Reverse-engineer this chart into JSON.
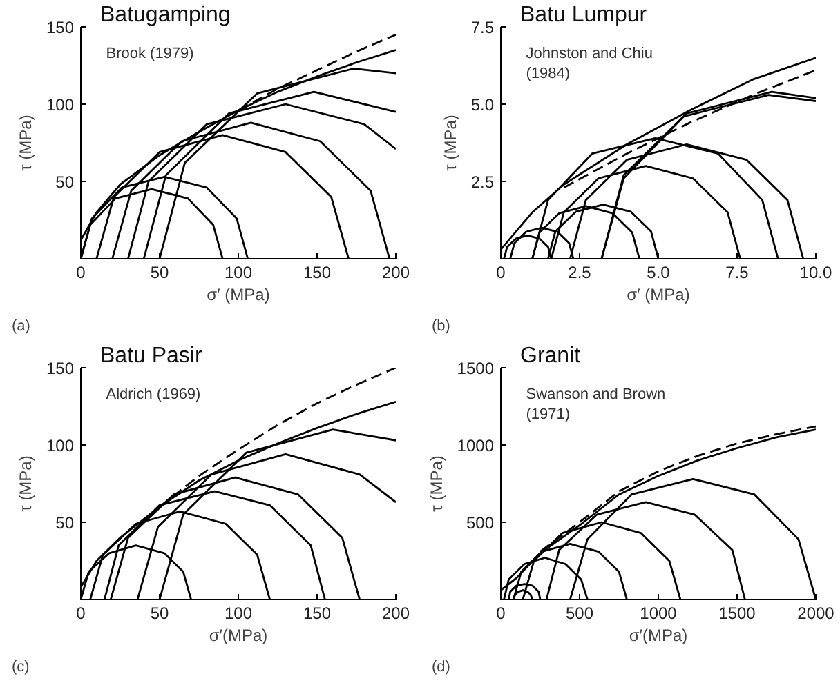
{
  "chart_data": [
    {
      "type": "line",
      "title": "Batugamping",
      "subtitle": "Brook (1979)",
      "xlabel": "σ′ (MPa)",
      "ylabel": "τ (MPa)",
      "annotations": [
        "(a)"
      ],
      "xlim": [
        0,
        200
      ],
      "ylim": [
        0,
        150
      ],
      "xticks": [
        0,
        50,
        100,
        150,
        200
      ],
      "yticks": [
        50,
        100,
        150
      ],
      "series": [
        {
          "color": "#000000",
          "line_style": "solid",
          "x": [
            0,
            10,
            25,
            50,
            75,
            100,
            125,
            150,
            175,
            200
          ],
          "values": [
            12,
            30,
            48,
            67,
            82,
            96,
            108,
            118,
            127,
            135
          ]
        },
        {
          "color": "#000000",
          "line_style": "dashed",
          "x": [
            100,
            125,
            150,
            175,
            200
          ],
          "values": [
            96,
            110,
            122,
            134,
            145
          ]
        },
        {
          "color": "#000000",
          "line_style": "solid",
          "x": [
            0,
            6,
            22,
            45,
            68,
            84,
            90
          ],
          "values": [
            0,
            22,
            39,
            45,
            39,
            22,
            0
          ]
        },
        {
          "color": "#000000",
          "line_style": "solid",
          "x": [
            0,
            7,
            26,
            53,
            80,
            99,
            106
          ],
          "values": [
            0,
            26,
            46,
            53,
            46,
            26,
            0
          ]
        },
        {
          "color": "#000000",
          "line_style": "solid",
          "x": [
            10,
            21,
            50,
            90,
            130,
            159,
            170
          ],
          "values": [
            0,
            40,
            69,
            80,
            69,
            40,
            0
          ]
        },
        {
          "color": "#000000",
          "line_style": "solid",
          "x": [
            20,
            32,
            64,
            108,
            152,
            184,
            196
          ],
          "values": [
            0,
            44,
            76,
            88,
            76,
            44,
            0
          ]
        },
        {
          "color": "#000000",
          "line_style": "solid",
          "x": [
            30,
            43,
            80,
            130,
            180,
            200
          ],
          "values": [
            0,
            50,
            87,
            100,
            87,
            71
          ]
        },
        {
          "color": "#000000",
          "line_style": "solid",
          "x": [
            40,
            54,
            94,
            148,
            200
          ],
          "values": [
            0,
            54,
            94,
            108,
            95
          ]
        },
        {
          "color": "#000000",
          "line_style": "solid",
          "x": [
            50,
            66,
            112,
            173,
            200
          ],
          "values": [
            0,
            62,
            107,
            123,
            120
          ]
        }
      ]
    },
    {
      "type": "line",
      "title": "Batu Lumpur",
      "subtitle": "Johnston and Chiu\n(1984)",
      "xlabel": "σ′ (MPa)",
      "ylabel": "τ (MPa)",
      "annotations": [
        "(b)"
      ],
      "xlim": [
        0,
        10
      ],
      "ylim": [
        0,
        7.5
      ],
      "xticks": [
        0,
        2.5,
        {
          "value": 5,
          "label": "5.0"
        },
        7.5,
        {
          "value": 10,
          "label": "10.0"
        }
      ],
      "yticks": [
        2.5,
        {
          "value": 5,
          "label": "5.0"
        },
        7.5
      ],
      "series": [
        {
          "color": "#000000",
          "line_style": "solid",
          "x": [
            0,
            1,
            2,
            4,
            6,
            8,
            10
          ],
          "values": [
            0.3,
            1.5,
            2.4,
            3.7,
            4.8,
            5.8,
            6.5
          ]
        },
        {
          "color": "#000000",
          "line_style": "dashed",
          "x": [
            2,
            4,
            6,
            8,
            10
          ],
          "values": [
            2.3,
            3.4,
            4.4,
            5.3,
            6.1
          ]
        },
        {
          "color": "#000000",
          "line_style": "solid",
          "x": [
            0.1,
            0.2,
            0.48,
            0.85,
            1.23,
            1.5,
            1.6
          ],
          "values": [
            0,
            0.38,
            0.65,
            0.75,
            0.65,
            0.38,
            0
          ]
        },
        {
          "color": "#000000",
          "line_style": "solid",
          "x": [
            0.3,
            0.43,
            0.8,
            1.3,
            1.8,
            2.17,
            2.3
          ],
          "values": [
            0,
            0.5,
            0.87,
            1,
            0.87,
            0.5,
            0
          ]
        },
        {
          "color": "#000000",
          "line_style": "solid",
          "x": [
            1,
            1.23,
            1.85,
            2.7,
            3.55,
            4.17,
            4.4
          ],
          "values": [
            0,
            0.85,
            1.47,
            1.7,
            1.47,
            0.85,
            0
          ]
        },
        {
          "color": "#000000",
          "line_style": "solid",
          "x": [
            1.5,
            1.73,
            2.38,
            3.25,
            4.13,
            4.77,
            5
          ],
          "values": [
            0,
            0.88,
            1.52,
            1.75,
            1.52,
            0.88,
            0
          ]
        },
        {
          "color": "#000000",
          "line_style": "solid",
          "x": [
            1.6,
            2,
            3.1,
            4.6,
            6.1,
            7.2,
            7.6
          ],
          "values": [
            0,
            1.5,
            2.6,
            3,
            2.6,
            1.5,
            0
          ]
        },
        {
          "color": "#000000",
          "line_style": "solid",
          "x": [
            1,
            1.5,
            2.9,
            4.9,
            6.9,
            8.3,
            8.8
          ],
          "values": [
            0,
            1.9,
            3.4,
            3.9,
            3.4,
            1.9,
            0
          ]
        },
        {
          "color": "#000000",
          "line_style": "solid",
          "x": [
            2.2,
            2.7,
            4,
            5.9,
            7.8,
            9.1,
            9.6
          ],
          "values": [
            0,
            1.9,
            3.2,
            3.7,
            3.2,
            1.9,
            0
          ]
        },
        {
          "color": "#000000",
          "line_style": "solid",
          "x": [
            3.2,
            3.9,
            5.9,
            8.6,
            10
          ],
          "values": [
            0,
            2.7,
            4.7,
            5.4,
            5.2
          ]
        },
        {
          "color": "#000000",
          "line_style": "solid",
          "x": [
            3.2,
            3.9,
            5.8,
            8.5,
            10
          ],
          "values": [
            0,
            2.6,
            4.6,
            5.3,
            5.1
          ]
        }
      ]
    },
    {
      "type": "line",
      "title": "Batu  Pasir",
      "subtitle": "Aldrich (1969)",
      "xlabel": "σ′(MPa)",
      "ylabel": "τ (MPa)",
      "annotations": [
        "(c)"
      ],
      "xlim": [
        0,
        200
      ],
      "ylim": [
        0,
        150
      ],
      "xticks": [
        0,
        50,
        100,
        150,
        200
      ],
      "yticks": [
        50,
        100,
        150
      ],
      "series": [
        {
          "color": "#000000",
          "line_style": "solid",
          "x": [
            0,
            10,
            25,
            50,
            75,
            100,
            125,
            150,
            175,
            200
          ],
          "values": [
            8,
            25,
            40,
            60,
            77,
            90,
            101,
            111,
            120,
            128
          ]
        },
        {
          "color": "#000000",
          "line_style": "dashed",
          "x": [
            50,
            75,
            100,
            125,
            150,
            175,
            200
          ],
          "values": [
            60,
            80,
            97,
            113,
            127,
            139,
            150
          ]
        },
        {
          "color": "#000000",
          "line_style": "solid",
          "x": [
            0,
            5,
            18,
            35,
            53,
            65,
            70
          ],
          "values": [
            0,
            18,
            30,
            35,
            30,
            18,
            0
          ]
        },
        {
          "color": "#000000",
          "line_style": "solid",
          "x": [
            6,
            14,
            35,
            63,
            92,
            112,
            120
          ],
          "values": [
            0,
            29,
            49,
            57,
            49,
            29,
            0
          ]
        },
        {
          "color": "#000000",
          "line_style": "solid",
          "x": [
            15,
            24,
            50,
            85,
            120,
            146,
            155
          ],
          "values": [
            0,
            35,
            61,
            70,
            61,
            35,
            0
          ]
        },
        {
          "color": "#000000",
          "line_style": "solid",
          "x": [
            19,
            30,
            59,
            98,
            138,
            166,
            177
          ],
          "values": [
            0,
            40,
            68,
            79,
            68,
            40,
            0
          ]
        },
        {
          "color": "#000000",
          "line_style": "solid",
          "x": [
            36,
            49,
            83,
            130,
            177,
            200
          ],
          "values": [
            0,
            47,
            81,
            94,
            81,
            63
          ]
        },
        {
          "color": "#000000",
          "line_style": "solid",
          "x": [
            50,
            65,
            105,
            160,
            200
          ],
          "values": [
            0,
            55,
            95,
            110,
            103
          ]
        }
      ]
    },
    {
      "type": "line",
      "title": "Granit",
      "subtitle": "Swanson and Brown\n(1971)",
      "xlabel": "σ′(MPa)",
      "ylabel": "τ (MPa)",
      "annotations": [
        "(d)"
      ],
      "xlim": [
        0,
        2000
      ],
      "ylim": [
        0,
        1500
      ],
      "xticks": [
        0,
        500,
        1000,
        1500,
        2000
      ],
      "yticks": [
        500,
        1000,
        1500
      ],
      "series": [
        {
          "color": "#000000",
          "line_style": "solid",
          "x": [
            0,
            100,
            250,
            500,
            750,
            1000,
            1250,
            1500,
            1750,
            2000
          ],
          "values": [
            60,
            140,
            300,
            480,
            680,
            800,
            900,
            980,
            1050,
            1100
          ]
        },
        {
          "color": "#000000",
          "line_style": "dashed",
          "x": [
            250,
            500,
            750,
            1000,
            1250,
            1500,
            1750,
            2000
          ],
          "values": [
            310,
            500,
            700,
            830,
            930,
            1010,
            1070,
            1120
          ]
        },
        {
          "color": "#000000",
          "line_style": "solid",
          "x": [
            80,
            90,
            110,
            140,
            170,
            190,
            200
          ],
          "values": [
            0,
            30,
            50,
            60,
            50,
            30,
            0
          ]
        },
        {
          "color": "#000000",
          "line_style": "solid",
          "x": [
            50,
            60,
            100,
            150,
            200,
            240,
            250
          ],
          "values": [
            0,
            50,
            90,
            100,
            90,
            50,
            0
          ]
        },
        {
          "color": "#000000",
          "line_style": "solid",
          "x": [
            20,
            50,
            150,
            280,
            410,
            510,
            550
          ],
          "values": [
            0,
            130,
            230,
            270,
            230,
            130,
            0
          ]
        },
        {
          "color": "#000000",
          "line_style": "solid",
          "x": [
            80,
            130,
            260,
            440,
            620,
            750,
            800
          ],
          "values": [
            0,
            180,
            310,
            360,
            310,
            180,
            0
          ]
        },
        {
          "color": "#000000",
          "line_style": "solid",
          "x": [
            140,
            210,
            390,
            640,
            890,
            1070,
            1140
          ],
          "values": [
            0,
            250,
            430,
            500,
            430,
            250,
            0
          ]
        },
        {
          "color": "#000000",
          "line_style": "solid",
          "x": [
            290,
            370,
            610,
            920,
            1230,
            1470,
            1550
          ],
          "values": [
            0,
            320,
            550,
            630,
            550,
            320,
            0
          ]
        },
        {
          "color": "#000000",
          "line_style": "solid",
          "x": [
            440,
            550,
            830,
            1220,
            1610,
            1890,
            2000
          ],
          "values": [
            0,
            390,
            680,
            780,
            680,
            390,
            0
          ]
        }
      ]
    }
  ]
}
